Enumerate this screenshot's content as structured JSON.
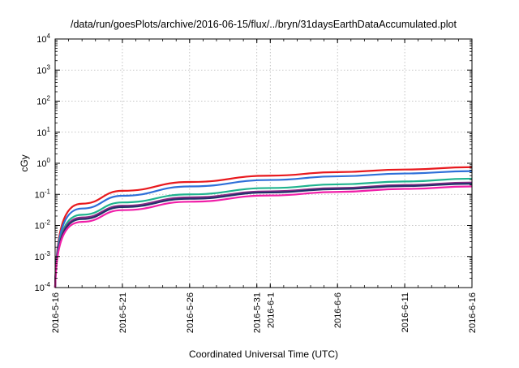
{
  "chart_data": {
    "type": "line",
    "title": "/data/run/goesPlots/archive/2016-06-15/flux/../bryn/31daysEarthDataAccumulated.plot",
    "xlabel": "Coordinated Universal Time (UTC)",
    "ylabel": "cGy",
    "y_scale": "log",
    "ylim": [
      0.0001,
      10000
    ],
    "y_ticks": [
      {
        "base": "10",
        "exp": "-4"
      },
      {
        "base": "10",
        "exp": "-3"
      },
      {
        "base": "10",
        "exp": "-2"
      },
      {
        "base": "10",
        "exp": "-1"
      },
      {
        "base": "10",
        "exp": "0"
      },
      {
        "base": "10",
        "exp": "1"
      },
      {
        "base": "10",
        "exp": "2"
      },
      {
        "base": "10",
        "exp": "3"
      },
      {
        "base": "10",
        "exp": "4"
      }
    ],
    "x_range": [
      "2016-05-16",
      "2016-06-16"
    ],
    "x_ticks": [
      "2016-5-16",
      "2016-5-21",
      "2016-5-26",
      "2016-5-31",
      "2016-6-1",
      "2016-6-6",
      "2016-6-11",
      "2016-6-16"
    ],
    "x_tick_dates": [
      "2016-05-16",
      "2016-05-21",
      "2016-05-26",
      "2016-05-31",
      "2016-06-01",
      "2016-06-06",
      "2016-06-11",
      "2016-06-16"
    ],
    "grid": true,
    "legend": "none",
    "series": [
      {
        "color": "#e8191e",
        "x": [
          "2016-05-16",
          "2016-05-18",
          "2016-05-21",
          "2016-05-26",
          "2016-06-01",
          "2016-06-06",
          "2016-06-11",
          "2016-06-16"
        ],
        "values": [
          0.0001,
          0.05,
          0.13,
          0.25,
          0.4,
          0.52,
          0.63,
          0.75
        ]
      },
      {
        "color": "#2e6fd8",
        "x": [
          "2016-05-16",
          "2016-05-18",
          "2016-05-21",
          "2016-05-26",
          "2016-06-01",
          "2016-06-06",
          "2016-06-11",
          "2016-06-16"
        ],
        "values": [
          0.0001,
          0.035,
          0.09,
          0.18,
          0.29,
          0.38,
          0.47,
          0.56
        ]
      },
      {
        "color": "#1fb38e",
        "x": [
          "2016-05-16",
          "2016-05-18",
          "2016-05-21",
          "2016-05-26",
          "2016-06-01",
          "2016-06-06",
          "2016-06-11",
          "2016-06-16"
        ],
        "values": [
          0.0001,
          0.022,
          0.055,
          0.1,
          0.16,
          0.21,
          0.26,
          0.32
        ]
      },
      {
        "color": "#8a2a86",
        "x": [
          "2016-05-16",
          "2016-05-18",
          "2016-05-21",
          "2016-05-26",
          "2016-06-01",
          "2016-06-06",
          "2016-06-11",
          "2016-06-16"
        ],
        "values": [
          0.0001,
          0.018,
          0.043,
          0.08,
          0.125,
          0.16,
          0.2,
          0.24
        ]
      },
      {
        "color": "#22306a",
        "x": [
          "2016-05-16",
          "2016-05-18",
          "2016-05-21",
          "2016-05-26",
          "2016-06-01",
          "2016-06-06",
          "2016-06-11",
          "2016-06-16"
        ],
        "values": [
          0.0001,
          0.016,
          0.039,
          0.072,
          0.115,
          0.148,
          0.185,
          0.22
        ]
      },
      {
        "color": "#f01ea8",
        "x": [
          "2016-05-16",
          "2016-05-18",
          "2016-05-21",
          "2016-05-26",
          "2016-06-01",
          "2016-06-06",
          "2016-06-11",
          "2016-06-16"
        ],
        "values": [
          0.0001,
          0.013,
          0.031,
          0.058,
          0.092,
          0.12,
          0.15,
          0.18
        ]
      }
    ]
  }
}
